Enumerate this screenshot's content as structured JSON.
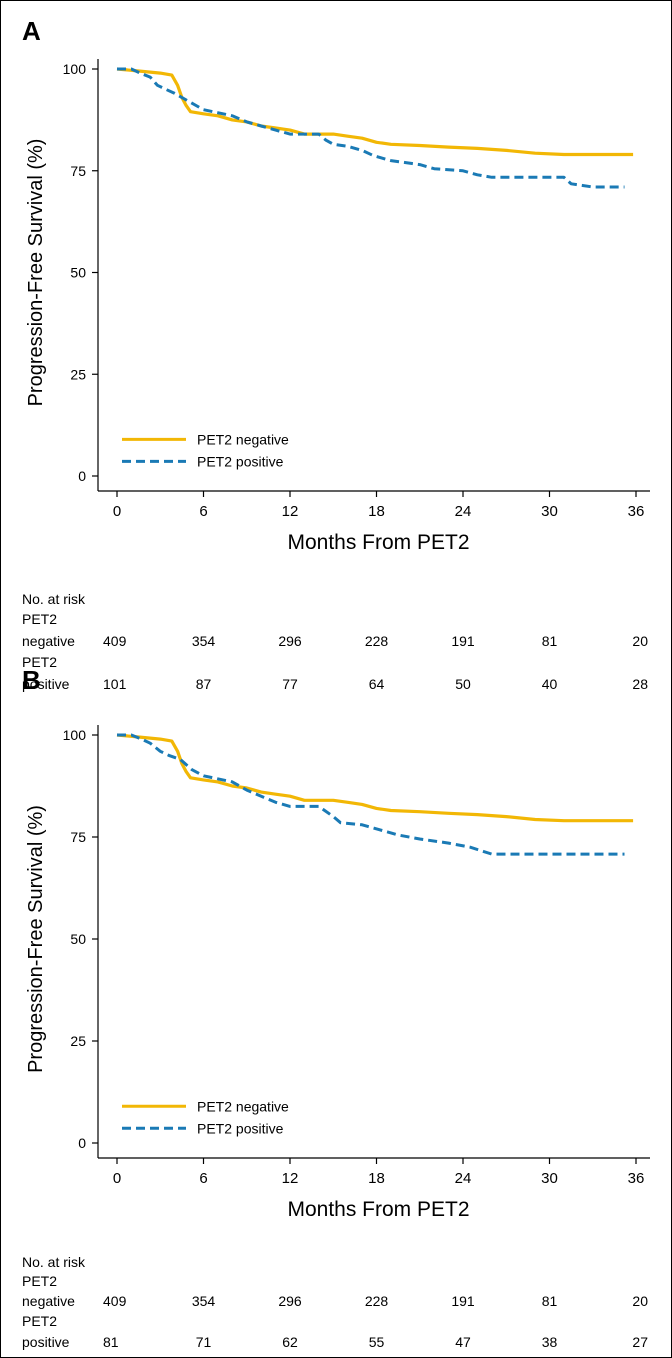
{
  "chart_data": [
    {
      "type": "line",
      "panel": "A",
      "xlabel": "Months From PET2",
      "ylabel": "Progression-Free Survival (%)",
      "xlim": [
        0,
        36
      ],
      "ylim": [
        0,
        100
      ],
      "x_ticks": [
        "0",
        "6",
        "12",
        "18",
        "24",
        "30",
        "36"
      ],
      "y_ticks": [
        "0",
        "25",
        "50",
        "75",
        "100"
      ],
      "legend_position": "bottom-left",
      "series": [
        {
          "name": "PET2 negative",
          "color": "#F2B705",
          "style": "solid",
          "points": [
            [
              0,
              100
            ],
            [
              1.5,
              99.5
            ],
            [
              3,
              99
            ],
            [
              3.8,
              98.5
            ],
            [
              4.2,
              96
            ],
            [
              4.5,
              93
            ],
            [
              4.8,
              91
            ],
            [
              5.1,
              89.5
            ],
            [
              6,
              89
            ],
            [
              7,
              88.5
            ],
            [
              8,
              87.5
            ],
            [
              9,
              87
            ],
            [
              10,
              86
            ],
            [
              11,
              85.5
            ],
            [
              12,
              85
            ],
            [
              13,
              84
            ],
            [
              15,
              84
            ],
            [
              16,
              83.5
            ],
            [
              17,
              83
            ],
            [
              18,
              82
            ],
            [
              19,
              81.5
            ],
            [
              21,
              81.2
            ],
            [
              23,
              80.8
            ],
            [
              25,
              80.5
            ],
            [
              27,
              80
            ],
            [
              29,
              79.3
            ],
            [
              31,
              79
            ],
            [
              33,
              79
            ],
            [
              35.8,
              79
            ]
          ]
        },
        {
          "name": "PET2 positive",
          "color": "#1A7AB5",
          "style": "dashed",
          "points": [
            [
              0,
              100
            ],
            [
              1,
              100
            ],
            [
              1.6,
              99
            ],
            [
              2.3,
              98
            ],
            [
              2.8,
              96
            ],
            [
              3.4,
              95
            ],
            [
              4,
              94
            ],
            [
              5,
              92
            ],
            [
              6,
              90
            ],
            [
              8,
              88.5
            ],
            [
              9,
              87
            ],
            [
              10,
              86
            ],
            [
              11,
              85
            ],
            [
              12,
              84
            ],
            [
              14,
              84
            ],
            [
              14.5,
              82.5
            ],
            [
              15,
              81.5
            ],
            [
              16,
              81
            ],
            [
              17,
              80
            ],
            [
              17.8,
              78.7
            ],
            [
              19,
              77.5
            ],
            [
              21,
              76.5
            ],
            [
              22,
              75.5
            ],
            [
              24,
              75
            ],
            [
              25,
              74
            ],
            [
              26,
              73.4
            ],
            [
              29,
              73.4
            ],
            [
              31,
              73.4
            ],
            [
              31.5,
              71.8
            ],
            [
              33,
              71
            ],
            [
              35.2,
              71
            ]
          ]
        }
      ],
      "risk_table": {
        "title": "No. at risk",
        "rows": [
          {
            "label1": "PET2",
            "label2": "negative",
            "values": [
              "409",
              "354",
              "296",
              "228",
              "191",
              "81",
              "20"
            ]
          },
          {
            "label1": "PET2",
            "label2": "positive",
            "values": [
              "101",
              "87",
              "77",
              "64",
              "50",
              "40",
              "28"
            ]
          }
        ]
      }
    },
    {
      "type": "line",
      "panel": "B",
      "xlabel": "Months From PET2",
      "ylabel": "Progression-Free Survival (%)",
      "xlim": [
        0,
        36
      ],
      "ylim": [
        0,
        100
      ],
      "x_ticks": [
        "0",
        "6",
        "12",
        "18",
        "24",
        "30",
        "36"
      ],
      "y_ticks": [
        "0",
        "25",
        "50",
        "75",
        "100"
      ],
      "legend_position": "bottom-left",
      "series": [
        {
          "name": "PET2 negative",
          "color": "#F2B705",
          "style": "solid",
          "points": [
            [
              0,
              100
            ],
            [
              1.5,
              99.5
            ],
            [
              3,
              99
            ],
            [
              3.8,
              98.5
            ],
            [
              4.2,
              96
            ],
            [
              4.5,
              93
            ],
            [
              4.8,
              91
            ],
            [
              5.1,
              89.5
            ],
            [
              6,
              89
            ],
            [
              7,
              88.5
            ],
            [
              8,
              87.5
            ],
            [
              9,
              87
            ],
            [
              10,
              86
            ],
            [
              11,
              85.5
            ],
            [
              12,
              85
            ],
            [
              13,
              84
            ],
            [
              15,
              84
            ],
            [
              16,
              83.5
            ],
            [
              17,
              83
            ],
            [
              18,
              82
            ],
            [
              19,
              81.5
            ],
            [
              21,
              81.2
            ],
            [
              23,
              80.8
            ],
            [
              25,
              80.5
            ],
            [
              27,
              80
            ],
            [
              29,
              79.3
            ],
            [
              31,
              79
            ],
            [
              33,
              79
            ],
            [
              35.8,
              79
            ]
          ]
        },
        {
          "name": "PET2 positive",
          "color": "#1A7AB5",
          "style": "dashed",
          "points": [
            [
              0,
              100
            ],
            [
              1,
              100
            ],
            [
              1.7,
              99
            ],
            [
              2.3,
              98
            ],
            [
              3,
              96
            ],
            [
              3.6,
              95
            ],
            [
              4.4,
              94
            ],
            [
              5.2,
              91.5
            ],
            [
              6,
              90
            ],
            [
              8,
              88.5
            ],
            [
              9,
              86.5
            ],
            [
              10,
              85
            ],
            [
              11,
              83.5
            ],
            [
              12,
              82.5
            ],
            [
              14,
              82.5
            ],
            [
              15,
              80
            ],
            [
              15.5,
              78.5
            ],
            [
              17,
              78
            ],
            [
              18.2,
              76.8
            ],
            [
              19.5,
              75.5
            ],
            [
              21,
              74.5
            ],
            [
              23,
              73.5
            ],
            [
              24.5,
              72.5
            ],
            [
              26,
              70.8
            ],
            [
              28,
              70.8
            ],
            [
              31,
              70.8
            ],
            [
              35.2,
              70.8
            ]
          ]
        }
      ],
      "risk_table": {
        "title": "No. at risk",
        "rows": [
          {
            "label1": "PET2",
            "label2": "negative",
            "values": [
              "409",
              "354",
              "296",
              "228",
              "191",
              "81",
              "20"
            ]
          },
          {
            "label1": "PET2",
            "label2": "positive",
            "values": [
              "81",
              "71",
              "62",
              "55",
              "47",
              "38",
              "27"
            ]
          }
        ]
      }
    }
  ]
}
